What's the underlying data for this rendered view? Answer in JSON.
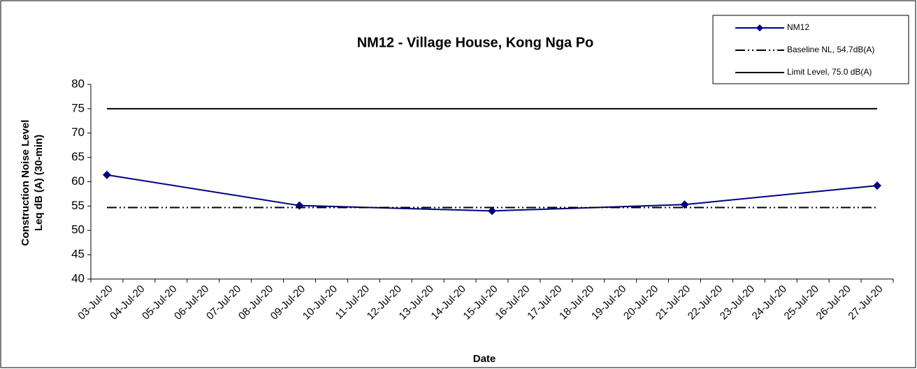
{
  "chart_data": {
    "type": "line",
    "title": "NM12 - Village House, Kong Nga Po",
    "x_label": "Date",
    "y_label": [
      "Construction Noise Level",
      "Leq dB (A) (30-min)"
    ],
    "categories": [
      "03-Jul-20",
      "04-Jul-20",
      "05-Jul-20",
      "06-Jul-20",
      "07-Jul-20",
      "08-Jul-20",
      "09-Jul-20",
      "10-Jul-20",
      "11-Jul-20",
      "12-Jul-20",
      "13-Jul-20",
      "14-Jul-20",
      "15-Jul-20",
      "16-Jul-20",
      "17-Jul-20",
      "18-Jul-20",
      "19-Jul-20",
      "20-Jul-20",
      "21-Jul-20",
      "22-Jul-20",
      "23-Jul-20",
      "24-Jul-20",
      "25-Jul-20",
      "26-Jul-20",
      "27-Jul-20"
    ],
    "series": [
      {
        "name": "NM12",
        "color": "#000080",
        "marker": "diamond",
        "dash": "solid",
        "x": [
          "03-Jul-20",
          "09-Jul-20",
          "15-Jul-20",
          "21-Jul-20",
          "27-Jul-20"
        ],
        "values": [
          61.4,
          55.1,
          54.0,
          55.3,
          59.2
        ]
      },
      {
        "name": "Baseline NL,  54.7dB(A)",
        "color": "#000000",
        "dash": "dash-dot-dot",
        "x": [
          "03-Jul-20",
          "27-Jul-20"
        ],
        "values": [
          54.7,
          54.7
        ]
      },
      {
        "name": "Limit Level, 75.0 dB(A)",
        "color": "#000000",
        "dash": "solid",
        "x": [
          "03-Jul-20",
          "27-Jul-20"
        ],
        "values": [
          75.0,
          75.0
        ]
      }
    ],
    "ylim": [
      40,
      80
    ],
    "yticks": [
      40,
      45,
      50,
      55,
      60,
      65,
      70,
      75,
      80
    ],
    "legend": "top-right"
  }
}
